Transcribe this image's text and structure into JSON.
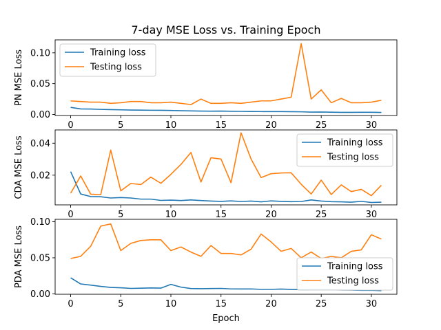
{
  "chart_data": {
    "type": "line",
    "title": "7-day MSE Loss vs. Training Epoch",
    "xlabel": "Epoch",
    "x": [
      0,
      1,
      2,
      3,
      4,
      5,
      6,
      7,
      8,
      9,
      10,
      11,
      12,
      13,
      14,
      15,
      16,
      17,
      18,
      19,
      20,
      21,
      22,
      23,
      24,
      25,
      26,
      27,
      28,
      29,
      30,
      31
    ],
    "xlim": [
      -1.55,
      32.55
    ],
    "xticks": [
      0,
      5,
      10,
      15,
      20,
      25,
      30
    ],
    "colors": {
      "training": "#1f77b4",
      "testing": "#ff7f0e"
    },
    "panels": [
      {
        "ylabel": "PN MSE Loss",
        "ylim": [
          -0.0017,
          0.121
        ],
        "yticks": [
          0.0,
          0.05,
          0.1
        ],
        "ytick_labels": [
          "0.00",
          "0.05",
          "0.10"
        ],
        "legend": "upper left",
        "series": [
          {
            "name": "Training loss",
            "values": [
              0.0115,
              0.009,
              0.0088,
              0.0082,
              0.0078,
              0.0075,
              0.0072,
              0.007,
              0.0068,
              0.0067,
              0.0065,
              0.006,
              0.0058,
              0.0055,
              0.0053,
              0.0055,
              0.0052,
              0.005,
              0.0048,
              0.0047,
              0.0046,
              0.0046,
              0.0045,
              0.0043,
              0.0038,
              0.004,
              0.0037,
              0.0034,
              0.0034,
              0.0035,
              0.0035,
              0.0033
            ]
          },
          {
            "name": "Testing loss",
            "values": [
              0.022,
              0.021,
              0.02,
              0.02,
              0.018,
              0.019,
              0.021,
              0.021,
              0.019,
              0.019,
              0.02,
              0.018,
              0.016,
              0.025,
              0.018,
              0.018,
              0.019,
              0.018,
              0.02,
              0.022,
              0.022,
              0.025,
              0.028,
              0.115,
              0.025,
              0.04,
              0.019,
              0.026,
              0.019,
              0.019,
              0.02,
              0.023
            ]
          }
        ]
      },
      {
        "ylabel": "CDA MSE Loss",
        "ylim": [
          0.0014,
          0.0483
        ],
        "yticks": [
          0.02,
          0.04
        ],
        "ytick_labels": [
          "0.02",
          "0.04"
        ],
        "legend": "upper right",
        "series": [
          {
            "name": "Training loss",
            "values": [
              0.0222,
              0.0082,
              0.0066,
              0.0065,
              0.0057,
              0.006,
              0.0057,
              0.005,
              0.005,
              0.0042,
              0.0044,
              0.0041,
              0.0045,
              0.0041,
              0.0038,
              0.0036,
              0.0039,
              0.0035,
              0.0038,
              0.0033,
              0.0039,
              0.0036,
              0.0034,
              0.0035,
              0.0045,
              0.0038,
              0.0034,
              0.0033,
              0.0031,
              0.0036,
              0.0029,
              0.0031
            ]
          },
          {
            "name": "Testing loss",
            "values": [
              0.0087,
              0.0195,
              0.0081,
              0.0078,
              0.0357,
              0.0102,
              0.0148,
              0.0141,
              0.0188,
              0.0149,
              0.0205,
              0.0267,
              0.0342,
              0.0157,
              0.0309,
              0.0301,
              0.0153,
              0.0465,
              0.0301,
              0.0185,
              0.0209,
              0.0214,
              0.0215,
              0.0143,
              0.0082,
              0.0169,
              0.0079,
              0.0139,
              0.0097,
              0.0111,
              0.0072,
              0.0137
            ]
          }
        ]
      },
      {
        "ylabel": "PDA MSE Loss",
        "ylim": [
          -0.0006,
          0.1034
        ],
        "yticks": [
          0.0,
          0.05,
          0.1
        ],
        "ytick_labels": [
          "0.00",
          "0.05",
          "0.10"
        ],
        "legend": "lower right",
        "series": [
          {
            "name": "Training loss",
            "values": [
              0.0222,
              0.0137,
              0.0121,
              0.0103,
              0.0089,
              0.0084,
              0.0075,
              0.0078,
              0.0082,
              0.0079,
              0.0131,
              0.0093,
              0.0073,
              0.0071,
              0.0073,
              0.0075,
              0.0068,
              0.0067,
              0.0068,
              0.0062,
              0.0062,
              0.0066,
              0.0061,
              0.0058,
              0.0057,
              0.0055,
              0.0055,
              0.0053,
              0.0052,
              0.0048,
              0.0049,
              0.0043
            ]
          },
          {
            "name": "Testing loss",
            "values": [
              0.049,
              0.052,
              0.066,
              0.094,
              0.097,
              0.06,
              0.07,
              0.074,
              0.075,
              0.075,
              0.06,
              0.065,
              0.058,
              0.052,
              0.067,
              0.056,
              0.056,
              0.054,
              0.062,
              0.083,
              0.072,
              0.059,
              0.063,
              0.05,
              0.058,
              0.049,
              0.052,
              0.05,
              0.059,
              0.061,
              0.082,
              0.076
            ]
          }
        ]
      }
    ]
  }
}
